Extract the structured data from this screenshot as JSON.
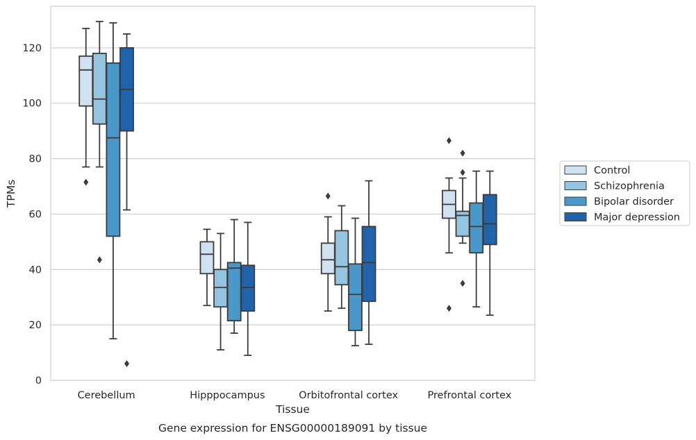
{
  "chart_data": {
    "type": "boxplot",
    "title": "Gene expression for ENSG00000189091 by tissue",
    "xlabel": "Tissue",
    "ylabel": "TPMs",
    "ylim": [
      0,
      135
    ],
    "yticks": [
      0,
      20,
      40,
      60,
      80,
      100,
      120
    ],
    "grid": "horizontal",
    "legend_position": "right",
    "categories": [
      "Cerebellum",
      "Hipppocampus",
      "Orbitofrontal cortex",
      "Prefrontal cortex"
    ],
    "series": [
      {
        "name": "Control",
        "color": "#d0e1f2",
        "boxes": [
          {
            "whislo": 77,
            "q1": 99,
            "med": 112,
            "q3": 117,
            "whishi": 127,
            "fliers": [
              71.5
            ]
          },
          {
            "whislo": 27,
            "q1": 38.5,
            "med": 45.5,
            "q3": 50,
            "whishi": 54.5,
            "fliers": []
          },
          {
            "whislo": 25,
            "q1": 38.5,
            "med": 43.5,
            "q3": 49.5,
            "whishi": 59,
            "fliers": [
              66.5
            ]
          },
          {
            "whislo": 46,
            "q1": 58.5,
            "med": 63.5,
            "q3": 68.5,
            "whishi": 73,
            "fliers": [
              86.5,
              26
            ]
          }
        ]
      },
      {
        "name": "Schizophrenia",
        "color": "#94c4df",
        "boxes": [
          {
            "whislo": 77,
            "q1": 92.5,
            "med": 101.5,
            "q3": 118,
            "whishi": 129.5,
            "fliers": [
              43.5
            ]
          },
          {
            "whislo": 11,
            "q1": 26.5,
            "med": 33.5,
            "q3": 40,
            "whishi": 53,
            "fliers": []
          },
          {
            "whislo": 26,
            "q1": 34.5,
            "med": 41,
            "q3": 54,
            "whishi": 63,
            "fliers": []
          },
          {
            "whislo": 49.5,
            "q1": 52,
            "med": 59.5,
            "q3": 61,
            "whishi": 73,
            "fliers": [
              82,
              75,
              35
            ]
          }
        ]
      },
      {
        "name": "Bipolar disorder",
        "color": "#4a98c9",
        "boxes": [
          {
            "whislo": 15,
            "q1": 52,
            "med": 87.5,
            "q3": 114.5,
            "whishi": 129,
            "fliers": []
          },
          {
            "whislo": 17,
            "q1": 21.5,
            "med": 40.5,
            "q3": 42.5,
            "whishi": 58,
            "fliers": []
          },
          {
            "whislo": 12.5,
            "q1": 18,
            "med": 31,
            "q3": 42,
            "whishi": 58.5,
            "fliers": []
          },
          {
            "whislo": 26.5,
            "q1": 46,
            "med": 55.5,
            "q3": 64,
            "whishi": 75.5,
            "fliers": []
          }
        ]
      },
      {
        "name": "Major depression",
        "color": "#2163aa",
        "boxes": [
          {
            "whislo": 61.5,
            "q1": 90,
            "med": 105,
            "q3": 120,
            "whishi": 125,
            "fliers": [
              6
            ]
          },
          {
            "whislo": 9,
            "q1": 25,
            "med": 33.5,
            "q3": 41.5,
            "whishi": 57,
            "fliers": []
          },
          {
            "whislo": 13,
            "q1": 28.5,
            "med": 42.5,
            "q3": 55.5,
            "whishi": 72,
            "fliers": []
          },
          {
            "whislo": 23.5,
            "q1": 49,
            "med": 56.5,
            "q3": 67,
            "whishi": 75.5,
            "fliers": []
          }
        ]
      }
    ]
  }
}
